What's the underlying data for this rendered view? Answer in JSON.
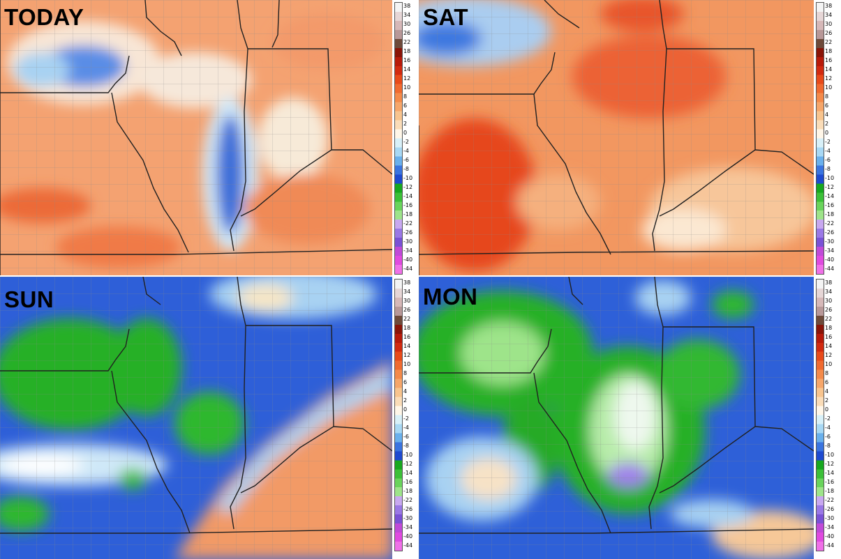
{
  "panels": [
    {
      "id": "today",
      "label": "TODAY",
      "palette": "warm-cool-mix"
    },
    {
      "id": "sat",
      "label": "SAT",
      "palette": "warm"
    },
    {
      "id": "sun",
      "label": "SUN",
      "palette": "cool-front"
    },
    {
      "id": "mon",
      "label": "MON",
      "palette": "cool"
    }
  ],
  "scale_ticks": [
    "38",
    "34",
    "30",
    "26",
    "22",
    "18",
    "16",
    "14",
    "12",
    "10",
    "8",
    "6",
    "4",
    "2",
    "0",
    "-2",
    "-4",
    "-6",
    "-8",
    "-10",
    "-12",
    "-14",
    "-16",
    "-18",
    "-22",
    "-26",
    "-30",
    "-34",
    "-40",
    "-44"
  ],
  "scale_colors": [
    "#f4f4f4",
    "#e6d6d6",
    "#d6b8b8",
    "#b89898",
    "#6e4a3a",
    "#8a1408",
    "#b81a0a",
    "#d22a10",
    "#e84a1a",
    "#f06a30",
    "#f48a4a",
    "#f6a66a",
    "#f8c48e",
    "#fadcb8",
    "#fff6e8",
    "#d8f0f8",
    "#a8d8f4",
    "#6ab0ec",
    "#3a74e0",
    "#1e4ad0",
    "#17a81f",
    "#3cc038",
    "#6ad45c",
    "#9ee48a",
    "#c8a8f0",
    "#9a78e6",
    "#7a52d6",
    "#c04ad8",
    "#e04ae0",
    "#f070e8"
  ]
}
